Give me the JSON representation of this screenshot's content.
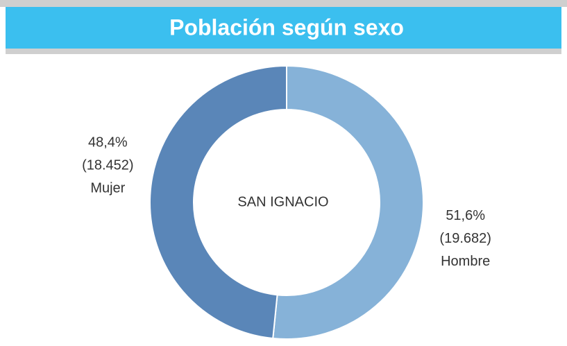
{
  "chart_data": {
    "type": "pie",
    "donut": true,
    "title": "Población según sexo",
    "center_label": "SAN IGNACIO",
    "categories": [
      "Hombre",
      "Mujer"
    ],
    "values": [
      51.6,
      48.4
    ],
    "value_labels": [
      "51,6%",
      "48,4%"
    ],
    "counts": [
      19682,
      18452
    ],
    "count_labels": [
      "(19.682)",
      "(18.452)"
    ],
    "colors": [
      "#86b2d8",
      "#5a86b8"
    ]
  }
}
